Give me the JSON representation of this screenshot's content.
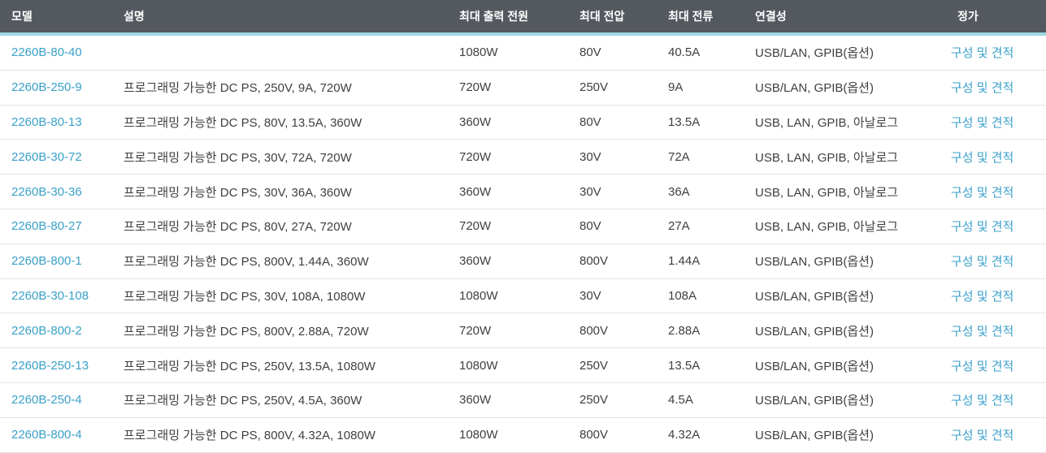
{
  "colors": {
    "header_background": "#54585f",
    "header_text": "#ffffff",
    "header_accent_underline": "#9fd8e5",
    "link": "#3aa0c9",
    "row_border": "#e4e4e4",
    "body_text": "#3f3f3f"
  },
  "table": {
    "columns": [
      {
        "label": "모델"
      },
      {
        "label": "설명"
      },
      {
        "label": "최대 출력 전원"
      },
      {
        "label": "최대 전압"
      },
      {
        "label": "최대 전류"
      },
      {
        "label": "연결성"
      },
      {
        "label": "정가"
      }
    ],
    "rows": [
      {
        "model": "2260B-80-40",
        "description": "",
        "max_power": "1080W",
        "max_voltage": "80V",
        "max_current": "40.5A",
        "connectivity": "USB/LAN, GPIB(옵션)",
        "price_link": "구성 및 견적"
      },
      {
        "model": "2260B-250-9",
        "description": "프로그래밍 가능한 DC PS, 250V, 9A, 720W",
        "max_power": "720W",
        "max_voltage": "250V",
        "max_current": "9A",
        "connectivity": "USB/LAN, GPIB(옵션)",
        "price_link": "구성 및 견적"
      },
      {
        "model": "2260B-80-13",
        "description": "프로그래밍 가능한 DC PS, 80V, 13.5A, 360W",
        "max_power": "360W",
        "max_voltage": "80V",
        "max_current": "13.5A",
        "connectivity": "USB, LAN, GPIB, 아날로그",
        "price_link": "구성 및 견적"
      },
      {
        "model": "2260B-30-72",
        "description": "프로그래밍 가능한 DC PS, 30V, 72A, 720W",
        "max_power": "720W",
        "max_voltage": "30V",
        "max_current": "72A",
        "connectivity": "USB, LAN, GPIB, 아날로그",
        "price_link": "구성 및 견적"
      },
      {
        "model": "2260B-30-36",
        "description": "프로그래밍 가능한 DC PS, 30V, 36A, 360W",
        "max_power": "360W",
        "max_voltage": "30V",
        "max_current": "36A",
        "connectivity": "USB, LAN, GPIB, 아날로그",
        "price_link": "구성 및 견적"
      },
      {
        "model": "2260B-80-27",
        "description": "프로그래밍 가능한 DC PS, 80V, 27A, 720W",
        "max_power": "720W",
        "max_voltage": "80V",
        "max_current": "27A",
        "connectivity": "USB, LAN, GPIB, 아날로그",
        "price_link": "구성 및 견적"
      },
      {
        "model": "2260B-800-1",
        "description": "프로그래밍 가능한 DC PS, 800V, 1.44A, 360W",
        "max_power": "360W",
        "max_voltage": "800V",
        "max_current": "1.44A",
        "connectivity": "USB/LAN, GPIB(옵션)",
        "price_link": "구성 및 견적"
      },
      {
        "model": "2260B-30-108",
        "description": "프로그래밍 가능한 DC PS, 30V, 108A, 1080W",
        "max_power": "1080W",
        "max_voltage": "30V",
        "max_current": "108A",
        "connectivity": "USB/LAN, GPIB(옵션)",
        "price_link": "구성 및 견적"
      },
      {
        "model": "2260B-800-2",
        "description": "프로그래밍 가능한 DC PS, 800V, 2.88A, 720W",
        "max_power": "720W",
        "max_voltage": "800V",
        "max_current": "2.88A",
        "connectivity": "USB/LAN, GPIB(옵션)",
        "price_link": "구성 및 견적"
      },
      {
        "model": "2260B-250-13",
        "description": "프로그래밍 가능한 DC PS, 250V, 13.5A, 1080W",
        "max_power": "1080W",
        "max_voltage": "250V",
        "max_current": "13.5A",
        "connectivity": "USB/LAN, GPIB(옵션)",
        "price_link": "구성 및 견적"
      },
      {
        "model": "2260B-250-4",
        "description": "프로그래밍 가능한 DC PS, 250V, 4.5A, 360W",
        "max_power": "360W",
        "max_voltage": "250V",
        "max_current": "4.5A",
        "connectivity": "USB/LAN, GPIB(옵션)",
        "price_link": "구성 및 견적"
      },
      {
        "model": "2260B-800-4",
        "description": "프로그래밍 가능한 DC PS, 800V, 4.32A, 1080W",
        "max_power": "1080W",
        "max_voltage": "800V",
        "max_current": "4.32A",
        "connectivity": "USB/LAN, GPIB(옵션)",
        "price_link": "구성 및 견적"
      }
    ]
  }
}
